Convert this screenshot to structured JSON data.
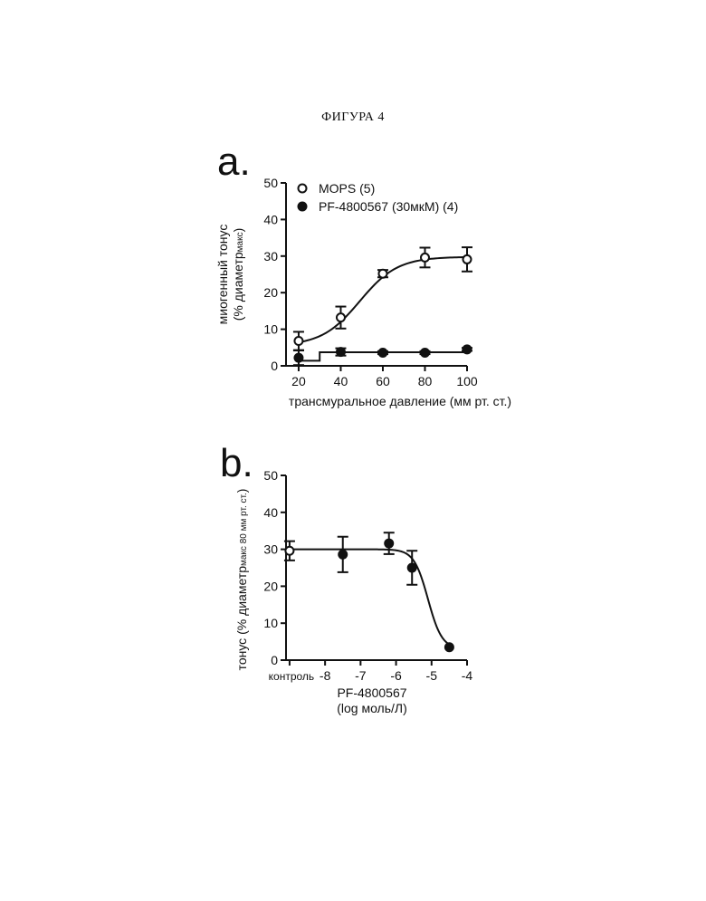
{
  "figure_title": "ФИГУРА 4",
  "chart_data": [
    {
      "type": "line",
      "panel_letter": "a.",
      "title": "",
      "xlabel": "трансмуральное давление (мм рт. ст.)",
      "ylabel_main": "миогенный тонус",
      "ylabel_paren": "(% диаметр",
      "ylabel_sub": "макс",
      "ylabel_close": ")",
      "xlim": [
        14,
        100
      ],
      "ylim": [
        0,
        50
      ],
      "x_ticks": [
        20,
        40,
        60,
        80,
        100
      ],
      "y_ticks": [
        0,
        10,
        20,
        30,
        40,
        50
      ],
      "legend_position": "top-left",
      "series": [
        {
          "name": "MOPS (5)",
          "marker": "open-circle",
          "x": [
            20,
            40,
            60,
            80,
            100
          ],
          "y": [
            6.8,
            13.2,
            25.2,
            29.6,
            29.1
          ],
          "err": [
            2.5,
            3.0,
            1.0,
            2.7,
            3.3
          ],
          "fit": "sigmoid",
          "fit_params": {
            "bottom": 5.5,
            "top": 29.8,
            "x50": 49,
            "slope": 9
          }
        },
        {
          "name": "PF-4800567 (30мкМ) (4)",
          "marker": "filled-circle",
          "x": [
            20,
            40,
            60,
            80,
            100
          ],
          "y": [
            2.2,
            3.8,
            3.6,
            3.6,
            4.5
          ],
          "err": [
            2.0,
            1.0,
            0.4,
            0.4,
            0.4
          ],
          "fit": "step",
          "fit_points": [
            [
              20,
              1.4
            ],
            [
              30,
              1.4
            ],
            [
              30,
              3.7
            ],
            [
              100,
              3.7
            ]
          ]
        }
      ]
    },
    {
      "type": "line",
      "panel_letter": "b.",
      "title": "",
      "xlabel_line1": "PF-4800567",
      "xlabel_line2": "(log моль/Л)",
      "ylabel_main": "тонус (% диаметр",
      "ylabel_sub": "макс 80 мм рт. ст.",
      "ylabel_close": ")",
      "xlim": [
        -9.1,
        -4
      ],
      "ylim": [
        0,
        50
      ],
      "x_ticks": [
        {
          "value": -9,
          "label": "контроль"
        },
        {
          "value": -8,
          "label": "-8"
        },
        {
          "value": -7,
          "label": "-7"
        },
        {
          "value": -6,
          "label": "-6"
        },
        {
          "value": -5,
          "label": "-5"
        },
        {
          "value": -4,
          "label": "-4"
        }
      ],
      "y_ticks": [
        0,
        10,
        20,
        30,
        40,
        50
      ],
      "series": [
        {
          "name": "",
          "marker": "open-circle",
          "x": [
            -9
          ],
          "y": [
            29.6
          ],
          "err": [
            2.6
          ]
        },
        {
          "name": "",
          "marker": "filled-circle",
          "x": [
            -7.5,
            -6.2,
            -5.55,
            -4.5
          ],
          "y": [
            28.6,
            31.6,
            25.0,
            3.5
          ],
          "err": [
            4.8,
            2.9,
            4.6,
            0.3
          ]
        }
      ],
      "fit": {
        "type": "sigmoid-decreasing",
        "top": 30.0,
        "bottom": 3.0,
        "logIC50": -5.1,
        "hill": 2.2,
        "x_from": -9,
        "x_to": -4.5
      }
    }
  ]
}
